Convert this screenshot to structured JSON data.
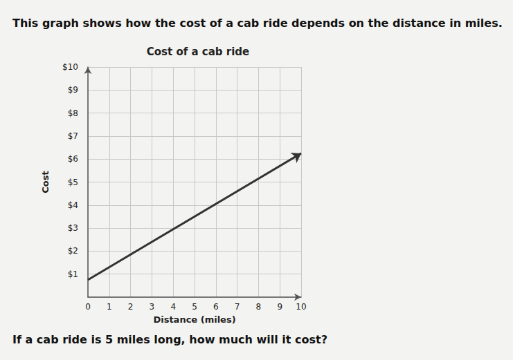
{
  "heading": "This graph shows how the cost of a cab ride depends on the distance in miles.",
  "question": "If a cab ride is 5 miles long, how much will it cost?",
  "chart_data": {
    "type": "line",
    "title": "Cost of a cab ride",
    "x_label": "Distance (miles)",
    "y_label": "Cost",
    "x": [
      0,
      10
    ],
    "values": [
      0.75,
      6.25
    ],
    "color": "#333333",
    "xlim": [
      0,
      10
    ],
    "xticks": [
      0,
      1,
      2,
      3,
      4,
      5,
      6,
      7,
      8,
      9,
      10
    ],
    "ylim": [
      0,
      10
    ],
    "yticks": [
      {
        "value": 1,
        "label": "$1"
      },
      {
        "value": 2,
        "label": "$2"
      },
      {
        "value": 3,
        "label": "$3"
      },
      {
        "value": 4,
        "label": "$4"
      },
      {
        "value": 5,
        "label": "$5"
      },
      {
        "value": 6,
        "label": "$6"
      },
      {
        "value": 7,
        "label": "$7"
      },
      {
        "value": 8,
        "label": "$8"
      },
      {
        "value": 9,
        "label": "$9"
      },
      {
        "value": 10,
        "label": "$10"
      }
    ],
    "grid": true
  }
}
